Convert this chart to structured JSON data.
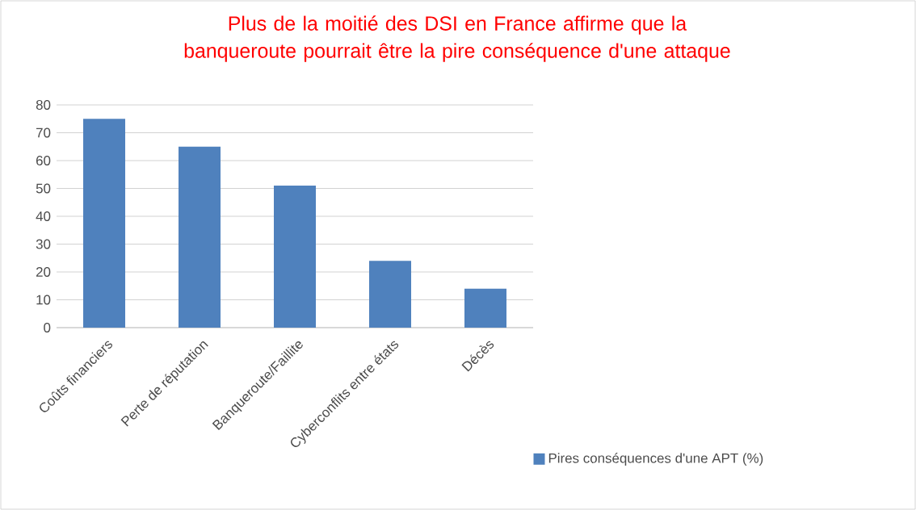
{
  "chart_data": {
    "type": "bar",
    "title": "Plus de la moitié des DSI en France affirme que la banqueroute pourrait être la pire conséquence  d'une attaque",
    "categories": [
      "Coûts financiers",
      "Perte de réputation",
      "Banqueroute/Faillite",
      "Cyberconflits entre états",
      "Décès"
    ],
    "series": [
      {
        "name": "Pires conséquences d'une APT (%)",
        "color": "#4f81bd",
        "values": [
          75,
          65,
          51,
          24,
          14
        ]
      }
    ],
    "ylim": [
      0,
      80
    ],
    "yticks": [
      0,
      10,
      20,
      30,
      40,
      50,
      60,
      70,
      80
    ],
    "grid": "y",
    "legend": "bottom right"
  }
}
